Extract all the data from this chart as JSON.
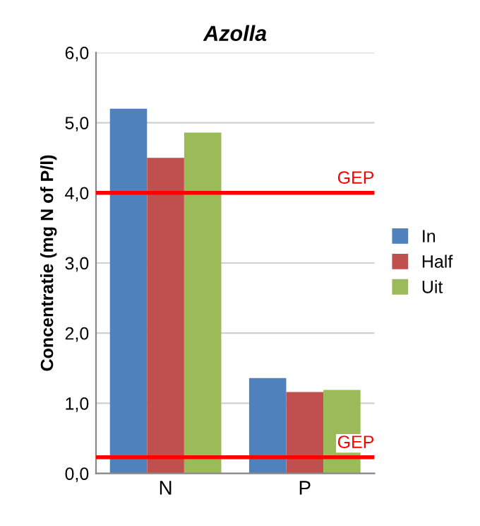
{
  "chart_data": {
    "type": "bar",
    "title": "Azolla",
    "ylabel": "Concentratie (mg N of P/l)",
    "categories": [
      "N",
      "P"
    ],
    "series": [
      {
        "name": "In",
        "color": "#4f81bd",
        "values": [
          5.2,
          1.36
        ]
      },
      {
        "name": "Half",
        "color": "#c0504d",
        "values": [
          4.5,
          1.16
        ]
      },
      {
        "name": "Uit",
        "color": "#9bbb59",
        "values": [
          4.86,
          1.19
        ]
      }
    ],
    "ylim": [
      0,
      6
    ],
    "yticks": [
      {
        "value": 0,
        "label": "0,0"
      },
      {
        "value": 1,
        "label": "1,0"
      },
      {
        "value": 2,
        "label": "2,0"
      },
      {
        "value": 3,
        "label": "3,0"
      },
      {
        "value": 4,
        "label": "4,0"
      },
      {
        "value": 5,
        "label": "5,0"
      },
      {
        "value": 6,
        "label": "6,0"
      }
    ],
    "grid": "y",
    "legend": "right",
    "ref_lines": [
      {
        "axis": "y",
        "value": 4.0,
        "label": "GEP",
        "color": "#ff0000"
      },
      {
        "axis": "y",
        "value": 0.23,
        "label": "GEP",
        "color": "#ff0000"
      }
    ]
  }
}
